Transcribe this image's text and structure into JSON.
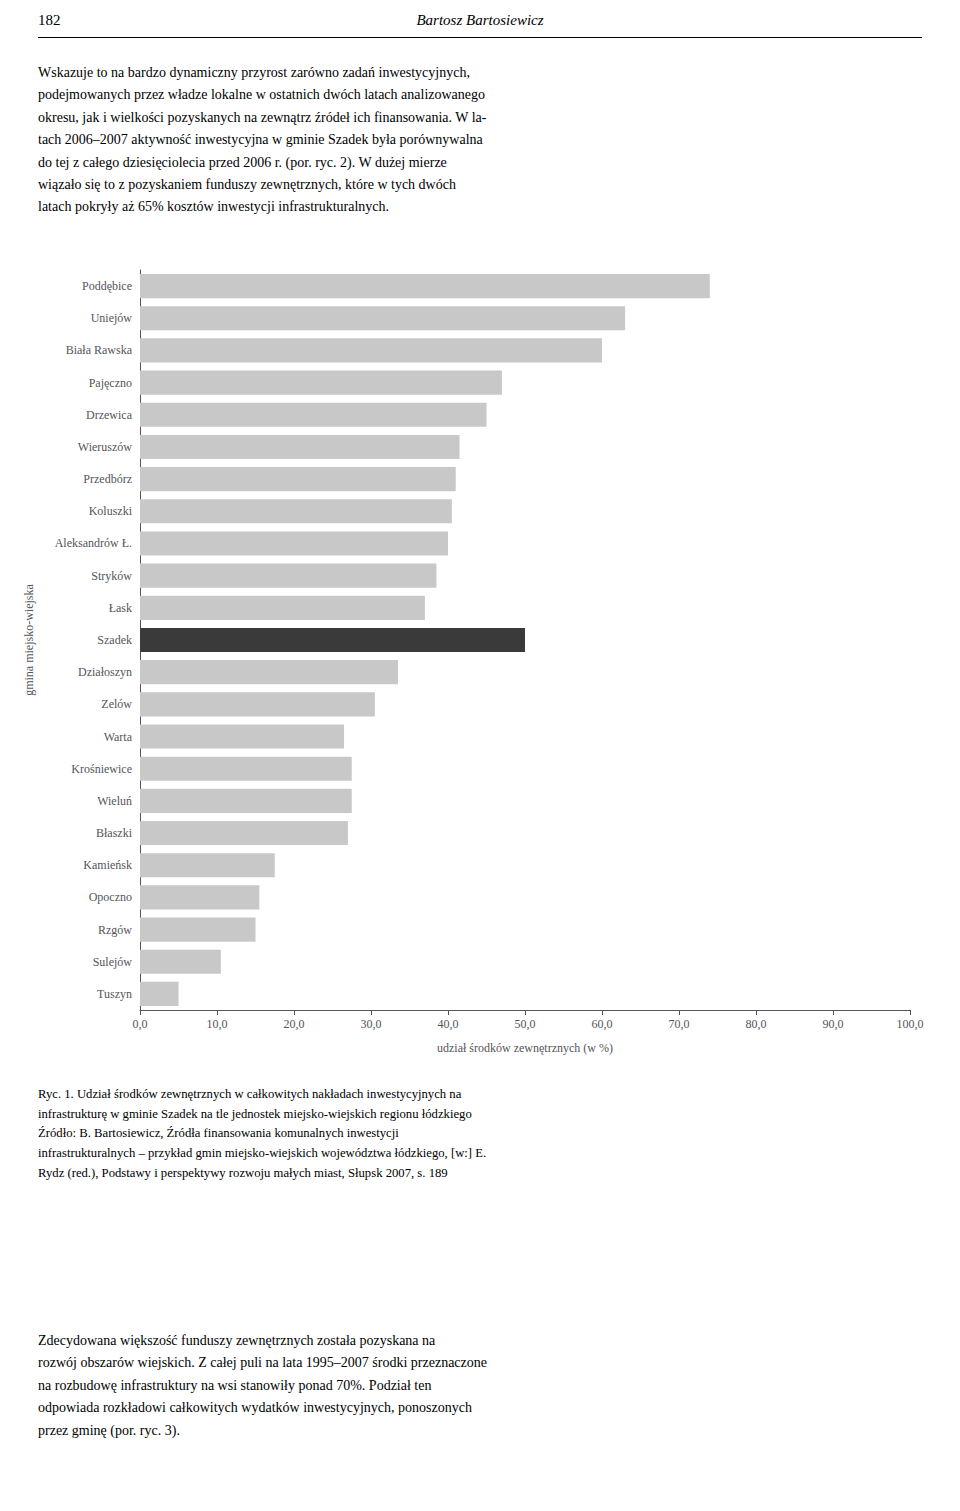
{
  "chart_data": {
    "type": "bar",
    "orientation": "horizontal",
    "categories": [
      "Tuszyn",
      "Sulejów",
      "Rzgów",
      "Opoczno",
      "Kamieńsk",
      "Błaszki",
      "Wieluń",
      "Krośniewice",
      "Warta",
      "Zelów",
      "Działoszyn",
      "Szadek",
      "Łask",
      "Stryków",
      "Aleksandrów Ł.",
      "Koluszki",
      "Przedbórz",
      "Wieruszów",
      "Drzewica",
      "Pajęczno",
      "Biała Rawska",
      "Uniejów",
      "Poddębice"
    ],
    "values": [
      5.0,
      10.5,
      15.0,
      15.5,
      17.5,
      27.0,
      27.5,
      27.5,
      26.5,
      30.5,
      33.5,
      50.0,
      37.0,
      38.5,
      40.0,
      40.5,
      41.0,
      41.5,
      45.0,
      47.0,
      60.0,
      63.0,
      74.0
    ],
    "colors": [
      "#c8c8c8",
      "#c8c8c8",
      "#c8c8c8",
      "#c8c8c8",
      "#c8c8c8",
      "#c8c8c8",
      "#c8c8c8",
      "#c8c8c8",
      "#c8c8c8",
      "#c8c8c8",
      "#c8c8c8",
      "#3a3a3a",
      "#c8c8c8",
      "#c8c8c8",
      "#c8c8c8",
      "#c8c8c8",
      "#c8c8c8",
      "#c8c8c8",
      "#c8c8c8",
      "#c8c8c8",
      "#c8c8c8",
      "#c8c8c8",
      "#c8c8c8"
    ],
    "xlabel": "udział środków zewnętrznych (w %)",
    "ylabel": "gmina miejsko-wiejska",
    "xlim": [
      0,
      100
    ],
    "xticks": [
      {
        "value": 0,
        "label": "0,0"
      },
      {
        "value": 10,
        "label": "10,0"
      },
      {
        "value": 20,
        "label": "20,0"
      },
      {
        "value": 30,
        "label": "30,0"
      },
      {
        "value": 40,
        "label": "40,0"
      },
      {
        "value": 50,
        "label": "50,0"
      },
      {
        "value": 60,
        "label": "60,0"
      },
      {
        "value": 70,
        "label": "70,0"
      },
      {
        "value": 80,
        "label": "80,0"
      },
      {
        "value": 90,
        "label": "90,0"
      },
      {
        "value": 100,
        "label": "100,0"
      }
    ],
    "grid": false,
    "annotations": [
      "182",
      "Bartosz Bartosiewicz",
      "Wskazuje to na bardzo dynamiczny przyrost zarówno zadań inwestycyjnych,\npodejmowanych przez władze lokalne w ostatnich dwóch latach analizowanego\nokresu, jak i wielkości pozyskanych na zewnątrz źródeł ich finansowania. W la-\ntach 2006–2007 aktywność inwestycyjna w gminie Szadek była porównywalna\ndo tej z całego dziesięciolecia przed 2006 r. (por. ryc. 2). W dużej mierze\nwiązało się to z pozyskaniem funduszy zewnętrznych, które w tych dwóch\nlatach pokryły aż 65% kosztów inwestycji infrastrukturalnych.",
      "Ryc. 1. Udział środków zewnętrznych w całkowitych nakładach inwestycyjnych na\ninfrastrukturę w gminie Szadek na tle jednostek miejsko-wiejskich regionu łódzkiego\nŹródło: B. Bartosiewicz, Źródła finansowania komunalnych inwestycji\ninfrastrukturalnych – przykład gmin miejsko-wiejskich województwa łódzkiego, [w:] E.\nRydz (red.), Podstawy i perspektywy rozwoju małych miast, Słupsk 2007, s. 189",
      "Zdecydowana większość funduszy zewnętrznych została pozyskana na\nrozwój obszarów wiejskich. Z całej puli na lata 1995–2007 środki przeznaczone\nna rozbudowę infrastruktury na wsi stanowiły ponad 70%. Podział ten\nodpowiada rozkładowi całkowitych wydatków inwestycyjnych, ponoszonych\nprzez gminę (por. ryc. 3)."
    ]
  }
}
